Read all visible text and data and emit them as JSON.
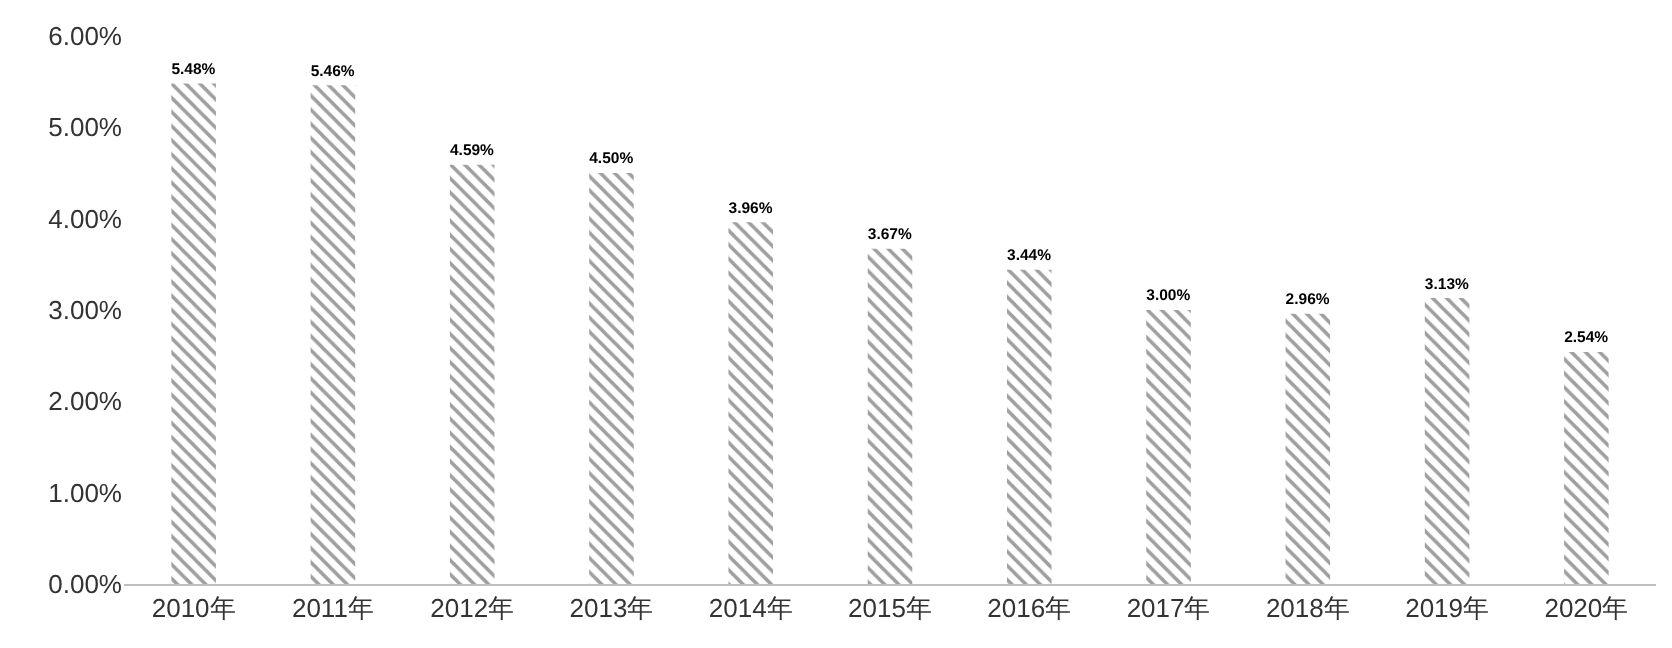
{
  "chart_data": {
    "type": "bar",
    "categories": [
      "2010年",
      "2011年",
      "2012年",
      "2013年",
      "2014年",
      "2015年",
      "2016年",
      "2017年",
      "2018年",
      "2019年",
      "2020年"
    ],
    "values": [
      5.48,
      5.46,
      4.59,
      4.5,
      3.96,
      3.67,
      3.44,
      3.0,
      2.96,
      3.13,
      2.54
    ],
    "value_labels": [
      "5.48%",
      "5.46%",
      "4.59%",
      "4.50%",
      "3.96%",
      "3.67%",
      "3.44%",
      "3.00%",
      "2.96%",
      "3.13%",
      "2.54%"
    ],
    "color": "#404040",
    "ylim": [
      0,
      6
    ],
    "yticks": [
      {
        "value": 0,
        "label": "0.00%"
      },
      {
        "value": 1,
        "label": "1.00%"
      },
      {
        "value": 2,
        "label": "2.00%"
      },
      {
        "value": 3,
        "label": "3.00%"
      },
      {
        "value": 4,
        "label": "4.00%"
      },
      {
        "value": 5,
        "label": "5.00%"
      },
      {
        "value": 6,
        "label": "6.00%"
      }
    ]
  }
}
